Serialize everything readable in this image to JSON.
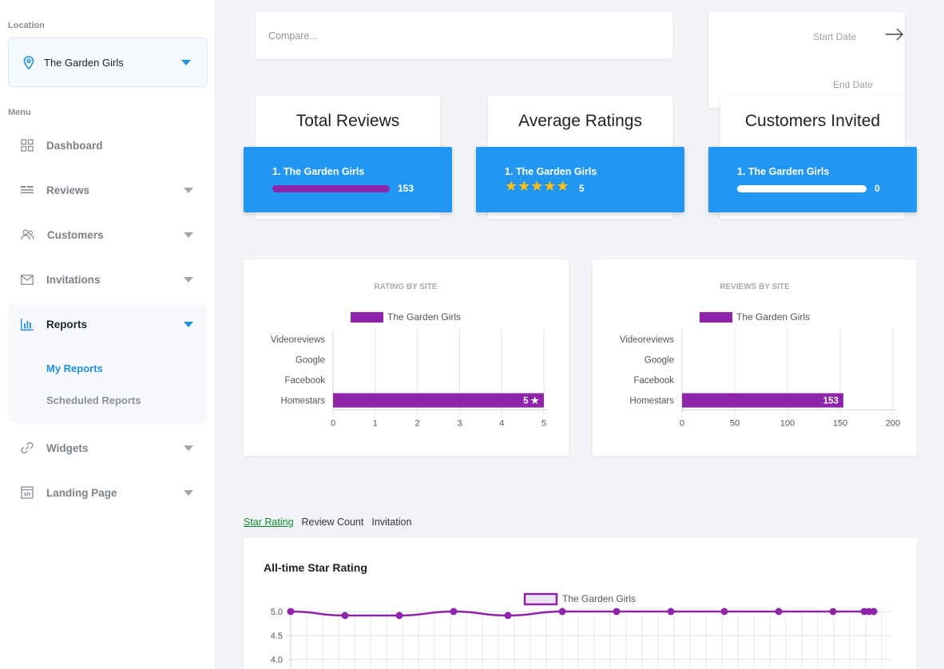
{
  "sidebar": {
    "location_heading": "Location",
    "location_value": "The Garden Girls",
    "menu_heading": "Menu",
    "items": [
      {
        "label": "Dashboard"
      },
      {
        "label": "Reviews"
      },
      {
        "label": "Customers"
      },
      {
        "label": "Invitations"
      },
      {
        "label": "Reports"
      },
      {
        "label": "Widgets"
      },
      {
        "label": "Landing Page"
      }
    ],
    "reports_sub": [
      {
        "label": "My Reports"
      },
      {
        "label": "Scheduled Reports"
      }
    ]
  },
  "filters": {
    "compare_placeholder": "Compare...",
    "start_date": "Start Date",
    "end_date": "End Date"
  },
  "stats": [
    {
      "title": "Total Reviews",
      "item": "1. The Garden Girls",
      "value": "153",
      "bar_fraction": 1.0,
      "bar_color": "#8e24aa"
    },
    {
      "title": "Average Ratings",
      "item": "1. The Garden Girls",
      "value": "5",
      "stars": "★★★★★"
    },
    {
      "title": "Customers Invited",
      "item": "1. The Garden Girls",
      "value": "0",
      "bar_fraction": 1.0,
      "bar_color": "#ffffff"
    }
  ],
  "tabs": {
    "star_rating": "Star Rating",
    "review_count": "Review Count",
    "invitation": "Invitation"
  },
  "colors": {
    "accent": "#2196f3",
    "purple": "#8e24aa"
  },
  "chart_data": [
    {
      "type": "bar",
      "orientation": "horizontal",
      "title": "RATING BY SITE",
      "categories": [
        "Videoreviews",
        "Google",
        "Facebook",
        "Homestars"
      ],
      "series": [
        {
          "name": "The Garden Girls",
          "values": [
            0,
            0,
            0,
            5
          ]
        }
      ],
      "data_labels": [
        "",
        "",
        "",
        "5 ★"
      ],
      "xlim": [
        0,
        5
      ],
      "xticks": [
        "0",
        "1",
        "2",
        "3",
        "4",
        "5"
      ],
      "grid": true,
      "legend": "top"
    },
    {
      "type": "bar",
      "orientation": "horizontal",
      "title": "REVIEWS BY SITE",
      "categories": [
        "Videoreviews",
        "Google",
        "Facebook",
        "Homestars"
      ],
      "series": [
        {
          "name": "The Garden Girls",
          "values": [
            0,
            0,
            0,
            153
          ]
        }
      ],
      "data_labels": [
        "",
        "",
        "",
        "153"
      ],
      "xlim": [
        0,
        200
      ],
      "xticks": [
        "0",
        "50",
        "100",
        "150",
        "200"
      ],
      "grid": true,
      "legend": "top"
    },
    {
      "type": "line",
      "title": "All-time Star Rating",
      "series": [
        {
          "name": "The Garden Girls",
          "values": [
            5.0,
            4.9,
            4.9,
            5.0,
            4.9,
            5.0,
            5.0,
            5.0,
            5.0,
            5.0,
            5.0,
            5.0,
            5.0,
            5.0
          ]
        }
      ],
      "yticks": [
        "5.0",
        "4.5",
        "4.0"
      ],
      "ylim": [
        4.0,
        5.0
      ],
      "grid": true,
      "legend": "top"
    }
  ]
}
